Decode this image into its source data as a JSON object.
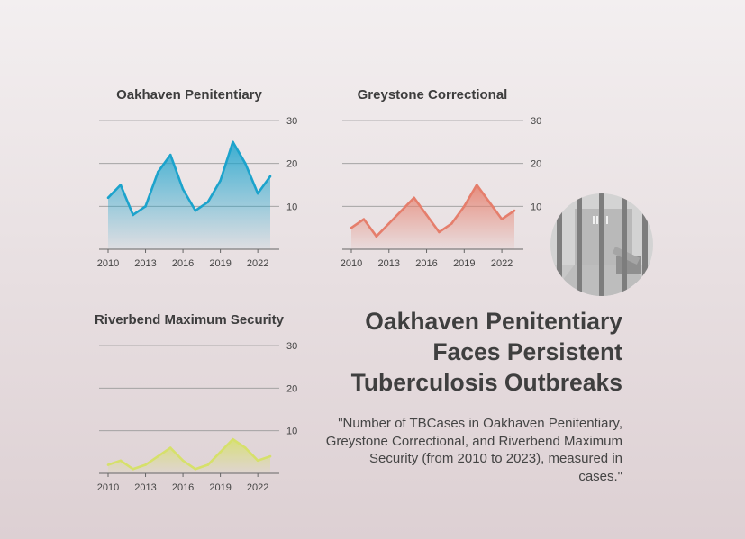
{
  "headline": "Oakhaven Penitentiary Faces Persistent Tuberculosis Outbreaks",
  "subtitle": "\"Number of TBCases in Oakhaven Penitentiary, Greystone Correctional, and Riverbend Maximum Security (from 2010 to 2023), measured in cases.\"",
  "icon": "prison-cell-icon",
  "chart_data": [
    {
      "type": "area",
      "title": "Oakhaven Penitentiary",
      "x": [
        2010,
        2011,
        2012,
        2013,
        2014,
        2015,
        2016,
        2017,
        2018,
        2019,
        2020,
        2021,
        2022,
        2023
      ],
      "values": [
        12,
        15,
        8,
        10,
        18,
        22,
        14,
        9,
        11,
        16,
        25,
        20,
        13,
        17
      ],
      "xticks": [
        "2010",
        "2013",
        "2016",
        "2019",
        "2022"
      ],
      "yticks": [
        "10",
        "20",
        "30"
      ],
      "ylim": [
        0,
        30
      ],
      "color": "#1ca3cc"
    },
    {
      "type": "area",
      "title": "Greystone Correctional",
      "x": [
        2010,
        2011,
        2012,
        2013,
        2014,
        2015,
        2016,
        2017,
        2018,
        2019,
        2020,
        2021,
        2022,
        2023
      ],
      "values": [
        5,
        7,
        3,
        6,
        9,
        12,
        8,
        4,
        6,
        10,
        15,
        11,
        7,
        9
      ],
      "xticks": [
        "2010",
        "2013",
        "2016",
        "2019",
        "2022"
      ],
      "yticks": [
        "10",
        "20",
        "30"
      ],
      "ylim": [
        0,
        30
      ],
      "color": "#e57e6c"
    },
    {
      "type": "area",
      "title": "Riverbend Maximum Security",
      "x": [
        2010,
        2011,
        2012,
        2013,
        2014,
        2015,
        2016,
        2017,
        2018,
        2019,
        2020,
        2021,
        2022,
        2023
      ],
      "values": [
        2,
        3,
        1,
        2,
        4,
        6,
        3,
        1,
        2,
        5,
        8,
        6,
        3,
        4
      ],
      "xticks": [
        "2010",
        "2013",
        "2016",
        "2019",
        "2022"
      ],
      "yticks": [
        "10",
        "20",
        "30"
      ],
      "ylim": [
        0,
        30
      ],
      "color": "#d6e06b"
    }
  ]
}
